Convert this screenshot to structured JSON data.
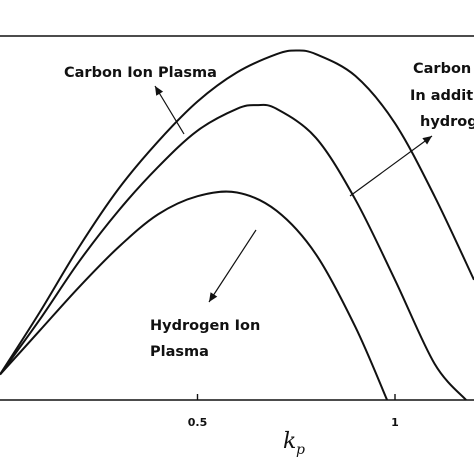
{
  "chart_data": {
    "type": "line",
    "title": "",
    "xlabel": "k",
    "xlabel_subscript": "p",
    "ylabel": "",
    "xlim": [
      0.0,
      1.2
    ],
    "ylim": [
      0,
      1
    ],
    "x_ticks": [
      {
        "value": 0.5,
        "label": "0.5"
      },
      {
        "value": 1.0,
        "label": "1"
      }
    ],
    "grid": false,
    "series": [
      {
        "name": "Carbon Ion Plasma",
        "x": [
          0.0,
          0.1,
          0.2,
          0.3,
          0.4,
          0.5,
          0.6,
          0.7,
          0.75,
          0.8,
          0.9,
          1.0,
          1.1,
          1.2
        ],
        "y": [
          0.07,
          0.24,
          0.42,
          0.58,
          0.71,
          0.82,
          0.9,
          0.95,
          0.96,
          0.95,
          0.89,
          0.76,
          0.56,
          0.33
        ]
      },
      {
        "name": "Carbon In additi hydrog",
        "x": [
          0.0,
          0.1,
          0.2,
          0.3,
          0.4,
          0.5,
          0.6,
          0.65,
          0.7,
          0.8,
          0.9,
          1.0,
          1.1,
          1.18
        ],
        "y": [
          0.07,
          0.22,
          0.38,
          0.52,
          0.64,
          0.74,
          0.8,
          0.81,
          0.8,
          0.72,
          0.55,
          0.33,
          0.1,
          0.0
        ]
      },
      {
        "name": "Hydrogen Ion Plasma",
        "x": [
          0.0,
          0.1,
          0.2,
          0.3,
          0.4,
          0.5,
          0.6,
          0.7,
          0.8,
          0.9,
          0.98
        ],
        "y": [
          0.07,
          0.19,
          0.31,
          0.42,
          0.51,
          0.56,
          0.57,
          0.52,
          0.4,
          0.2,
          0.0
        ]
      }
    ],
    "annotations": [
      {
        "lines": [
          "Carbon Ion Plasma"
        ]
      },
      {
        "lines": [
          "Carbon",
          "In additi",
          "hydrog"
        ]
      },
      {
        "lines": [
          "Hydrogen Ion",
          "Plasma"
        ]
      }
    ]
  }
}
